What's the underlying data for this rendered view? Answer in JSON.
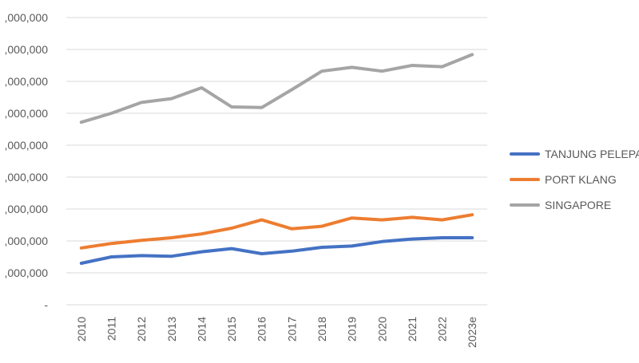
{
  "chart_data": {
    "type": "line",
    "title": "",
    "xlabel": "",
    "ylabel": "",
    "categories": [
      "2010",
      "2011",
      "2012",
      "2013",
      "2014",
      "2015",
      "2016",
      "2017",
      "2018",
      "2019",
      "2020",
      "2021",
      "2022",
      "2023e"
    ],
    "y_tick_labels": [
      "-",
      ",000,000",
      ",000,000",
      ",000,000",
      ",000,000",
      ",000,000",
      ",000,000",
      ",000,000",
      ",000,000",
      ",000,000"
    ],
    "ylim": [
      0,
      45000000
    ],
    "y_tick_step": 5000000,
    "grid": true,
    "legend_position": "right",
    "series": [
      {
        "name": "TANJUNG PELEPAS",
        "color": "#4472C4",
        "values": [
          6500000,
          7500000,
          7700000,
          7600000,
          8300000,
          8800000,
          8000000,
          8400000,
          9000000,
          9200000,
          9900000,
          10300000,
          10500000,
          10500000
        ]
      },
      {
        "name": "PORT KLANG",
        "color": "#ED7D31",
        "values": [
          8900000,
          9600000,
          10100000,
          10500000,
          11100000,
          12000000,
          13300000,
          11900000,
          12300000,
          13600000,
          13300000,
          13700000,
          13300000,
          14100000
        ]
      },
      {
        "name": "SINGAPORE",
        "color": "#A5A5A5",
        "values": [
          28600000,
          30000000,
          31700000,
          32300000,
          34000000,
          31000000,
          30900000,
          33700000,
          36600000,
          37200000,
          36600000,
          37500000,
          37300000,
          39200000
        ]
      }
    ]
  }
}
